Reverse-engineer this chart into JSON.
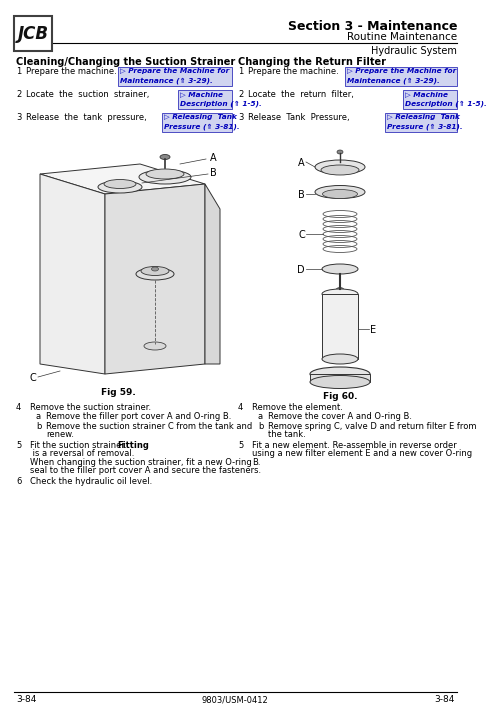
{
  "title_section": "Section 3 - Maintenance",
  "title_sub": "Routine Maintenance",
  "title_system": "Hydraulic System",
  "page_num": "3-84",
  "doc_num": "9803/USM-0412",
  "left_heading": "Cleaning/Changing the Suction Strainer",
  "right_heading": "Changing the Return Filter",
  "bg_color": "#ffffff",
  "fig_left": "Fig 59.",
  "fig_right": "Fig 60.",
  "left_steps": [
    [
      "1",
      "Prepare the machine.",
      "▷ Prepare the Machine for\nMaintenance (⇑ 3-29)."
    ],
    [
      "2",
      "Locate  the  suction  strainer,",
      "▷ Machine\nDescription (⇑ 1-5)."
    ],
    [
      "3",
      "Release  the  tank  pressure,",
      "▷ Releasing  Tank\nPressure (⇑ 3-81)."
    ]
  ],
  "right_steps": [
    [
      "1",
      "Prepare the machine.",
      "▷ Prepare the Machine for\nMaintenance (⇑ 3-29)."
    ],
    [
      "2",
      "Locate  the  return  filter,",
      "▷ Machine\nDescription (⇑ 1-5)."
    ],
    [
      "3",
      "Release  Tank  Pressure,",
      "▷ Releasing  Tank\nPressure (⇑ 3-81)."
    ]
  ],
  "left_step4": "Remove the suction strainer.",
  "left_step4a": "Remove the filler port cover A and O-ring B.",
  "left_step4b": "Remove the suction strainer C from the tank and\nrenew.",
  "left_step5_pre": "Fit the suction strainer. ",
  "left_step5_bold": "Fitting",
  "left_step5_post": " is a reversal of removal.\nWhen changing the suction strainer, fit a new O-ring\nseal to the filler port cover A and secure the fasteners.",
  "left_step6": "Check the hydraulic oil level.",
  "right_step4": "Remove the element.",
  "right_step4a": "Remove the cover A and O-ring B.",
  "right_step4b": "Remove spring C, valve D and return filter E from\nthe tank.",
  "right_step5": "Fit a new element. Re-assemble in reverse order\nusing a new filter element E and a new cover O-ring\nB."
}
